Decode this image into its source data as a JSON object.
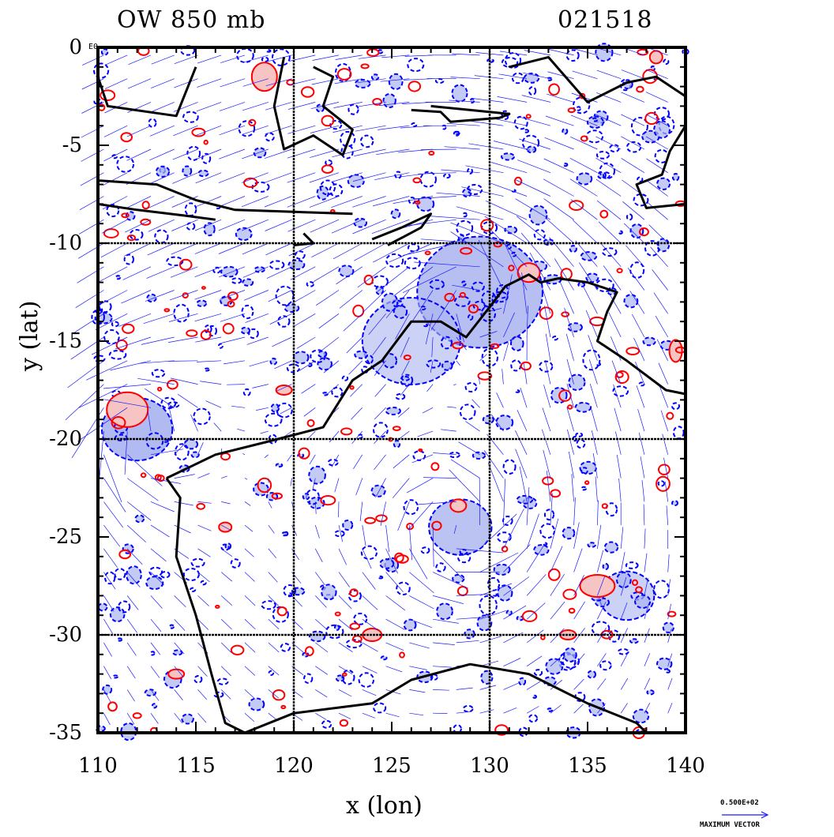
{
  "header": {
    "title_left": "OW 850 mb",
    "title_right": "021518"
  },
  "axes": {
    "xlabel": "x (lon)",
    "ylabel": "y (lat)",
    "x_ticks": [
      "110",
      "115",
      "120",
      "125",
      "130",
      "135",
      "140"
    ],
    "y_ticks": [
      "0",
      "-5",
      "-10",
      "-15",
      "-20",
      "-25",
      "-30",
      "-35"
    ],
    "corner_label": "E0"
  },
  "reference_vector": {
    "value": "0.500E+02",
    "label": "MAXIMUM VECTOR"
  },
  "map": {
    "lon_range": [
      110,
      140
    ],
    "lat_range": [
      -35,
      0
    ],
    "grid_lines_lon": [
      120,
      130
    ],
    "grid_lines_lat": [
      -10,
      -20,
      -30
    ],
    "colors": {
      "coast": "#000000",
      "positive_contour": "#ff0000",
      "positive_fill": "#f7c4c4",
      "negative_contour": "#0000ff",
      "negative_fill": "#aab4f0",
      "vectors": "#1a1aff"
    }
  }
}
